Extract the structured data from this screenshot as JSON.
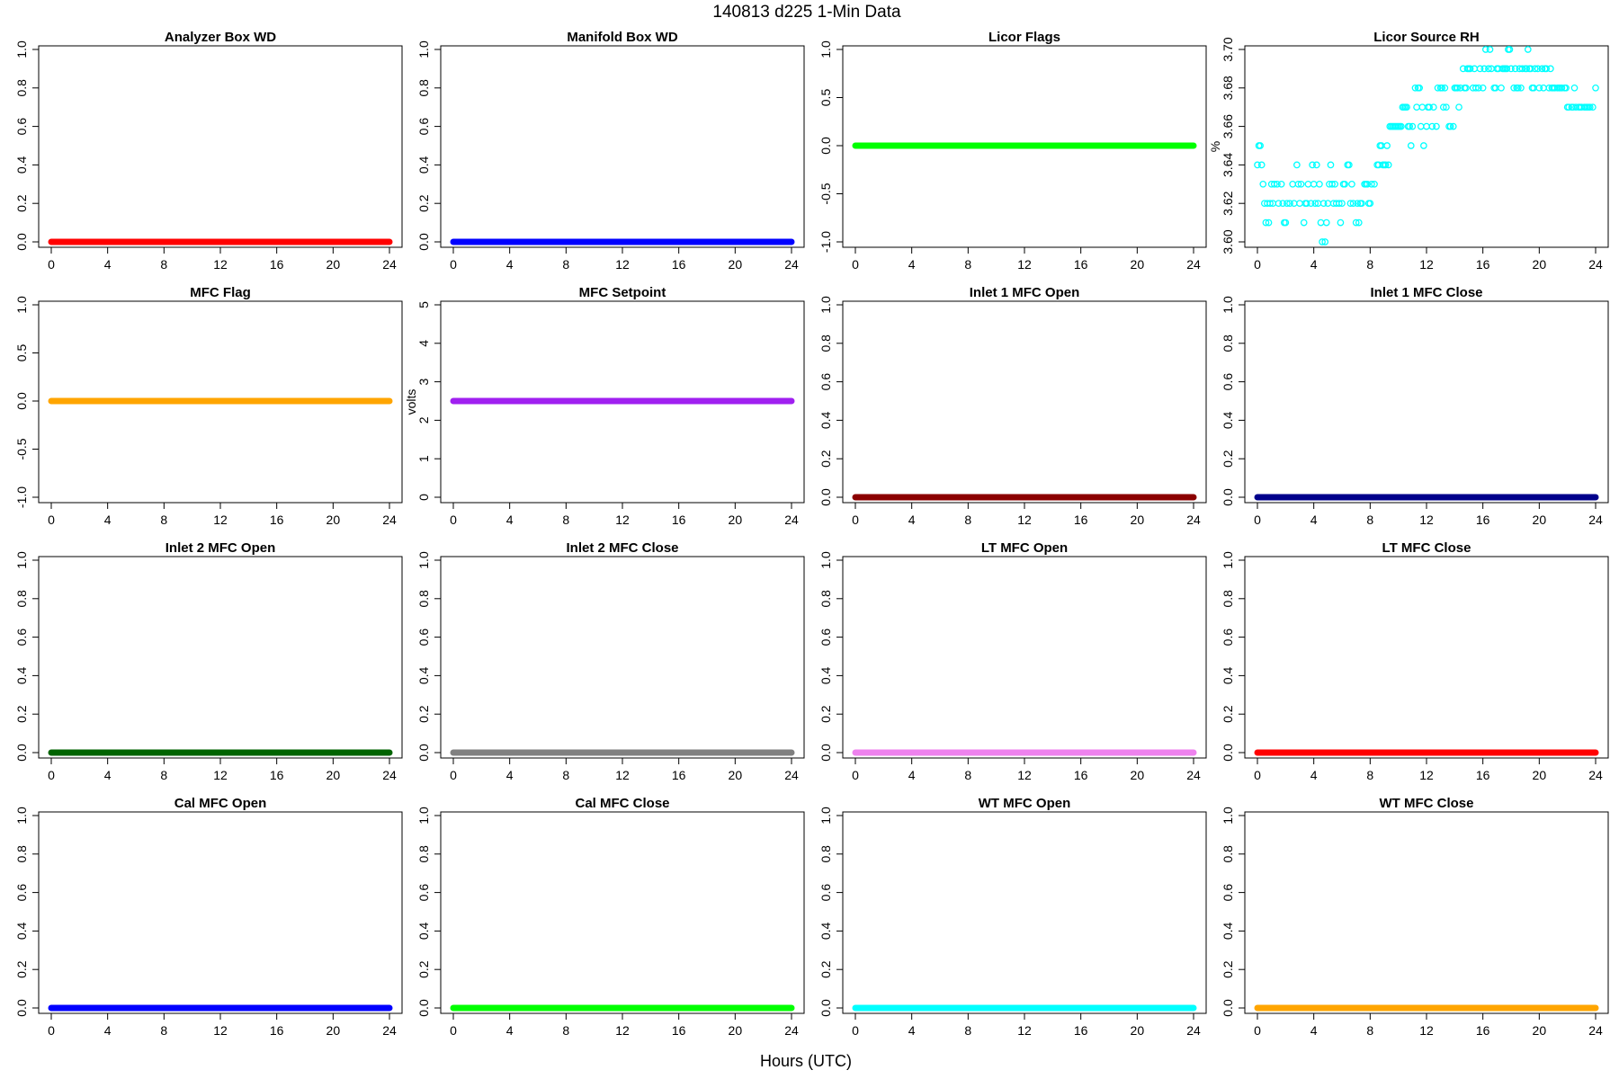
{
  "figure": {
    "title": "140813   d225   1-Min Data",
    "xlabel": "Hours (UTC)"
  },
  "chart_data": [
    {
      "type": "scatter",
      "title": "Analyzer Box WD",
      "ylabel": "",
      "xlim": [
        0,
        24
      ],
      "ylim": [
        0,
        1
      ],
      "x_ticks": [
        0,
        4,
        8,
        12,
        16,
        20,
        24
      ],
      "y_ticks": [
        "0.0",
        "0.2",
        "0.4",
        "0.6",
        "0.8",
        "1.0"
      ],
      "color": "#ff0000",
      "series": [
        {
          "x": [
            0,
            24
          ],
          "y": [
            0,
            0
          ]
        }
      ]
    },
    {
      "type": "scatter",
      "title": "Manifold Box WD",
      "ylabel": "",
      "xlim": [
        0,
        24
      ],
      "ylim": [
        0,
        1
      ],
      "x_ticks": [
        0,
        4,
        8,
        12,
        16,
        20,
        24
      ],
      "y_ticks": [
        "0.0",
        "0.2",
        "0.4",
        "0.6",
        "0.8",
        "1.0"
      ],
      "color": "#0000ff",
      "series": [
        {
          "x": [
            0,
            24
          ],
          "y": [
            0,
            0
          ]
        }
      ]
    },
    {
      "type": "scatter",
      "title": "Licor Flags",
      "ylabel": "",
      "xlim": [
        0,
        24
      ],
      "ylim": [
        -1,
        1
      ],
      "x_ticks": [
        0,
        4,
        8,
        12,
        16,
        20,
        24
      ],
      "y_ticks": [
        "-1.0",
        "-0.5",
        "0.0",
        "0.5",
        "1.0"
      ],
      "color": "#00ff00",
      "series": [
        {
          "x": [
            0,
            24
          ],
          "y": [
            0,
            0
          ]
        }
      ]
    },
    {
      "type": "scatter",
      "title": "Licor Source RH",
      "ylabel": "%",
      "xlim": [
        0,
        24
      ],
      "ylim": [
        3.6,
        3.7
      ],
      "x_ticks": [
        0,
        4,
        8,
        12,
        16,
        20,
        24
      ],
      "y_ticks": [
        "3.60",
        "3.62",
        "3.64",
        "3.66",
        "3.68",
        "3.70"
      ],
      "color": "#00ffff",
      "markers": "open-circle",
      "points": [
        [
          0.0,
          3.64
        ],
        [
          0.1,
          3.65
        ],
        [
          0.2,
          3.65
        ],
        [
          0.3,
          3.64
        ],
        [
          0.4,
          3.63
        ],
        [
          0.5,
          3.62
        ],
        [
          0.6,
          3.61
        ],
        [
          0.7,
          3.62
        ],
        [
          0.8,
          3.61
        ],
        [
          0.9,
          3.62
        ],
        [
          1.0,
          3.63
        ],
        [
          1.1,
          3.62
        ],
        [
          1.2,
          3.63
        ],
        [
          1.4,
          3.63
        ],
        [
          1.5,
          3.62
        ],
        [
          1.7,
          3.63
        ],
        [
          1.8,
          3.62
        ],
        [
          1.9,
          3.61
        ],
        [
          2.0,
          3.61
        ],
        [
          2.1,
          3.62
        ],
        [
          2.3,
          3.62
        ],
        [
          2.5,
          3.63
        ],
        [
          2.6,
          3.62
        ],
        [
          2.8,
          3.64
        ],
        [
          2.9,
          3.63
        ],
        [
          3.0,
          3.62
        ],
        [
          3.1,
          3.63
        ],
        [
          3.3,
          3.61
        ],
        [
          3.4,
          3.62
        ],
        [
          3.5,
          3.62
        ],
        [
          3.6,
          3.63
        ],
        [
          3.8,
          3.62
        ],
        [
          3.9,
          3.64
        ],
        [
          4.0,
          3.63
        ],
        [
          4.1,
          3.62
        ],
        [
          4.2,
          3.64
        ],
        [
          4.3,
          3.62
        ],
        [
          4.4,
          3.63
        ],
        [
          4.5,
          3.61
        ],
        [
          4.6,
          3.6
        ],
        [
          4.7,
          3.62
        ],
        [
          4.8,
          3.6
        ],
        [
          4.9,
          3.61
        ],
        [
          5.0,
          3.62
        ],
        [
          5.1,
          3.63
        ],
        [
          5.2,
          3.64
        ],
        [
          5.3,
          3.63
        ],
        [
          5.4,
          3.62
        ],
        [
          5.5,
          3.63
        ],
        [
          5.6,
          3.62
        ],
        [
          5.8,
          3.62
        ],
        [
          5.9,
          3.61
        ],
        [
          6.0,
          3.62
        ],
        [
          6.1,
          3.63
        ],
        [
          6.2,
          3.63
        ],
        [
          6.4,
          3.64
        ],
        [
          6.5,
          3.64
        ],
        [
          6.6,
          3.62
        ],
        [
          6.7,
          3.63
        ],
        [
          6.8,
          3.62
        ],
        [
          7.0,
          3.61
        ],
        [
          7.1,
          3.62
        ],
        [
          7.2,
          3.61
        ],
        [
          7.3,
          3.62
        ],
        [
          7.4,
          3.62
        ],
        [
          7.6,
          3.63
        ],
        [
          7.7,
          3.63
        ],
        [
          7.8,
          3.63
        ],
        [
          7.9,
          3.62
        ],
        [
          8.0,
          3.62
        ],
        [
          8.1,
          3.63
        ],
        [
          8.3,
          3.63
        ],
        [
          8.5,
          3.64
        ],
        [
          8.6,
          3.64
        ],
        [
          8.7,
          3.65
        ],
        [
          8.8,
          3.65
        ],
        [
          8.9,
          3.64
        ],
        [
          9.0,
          3.64
        ],
        [
          9.1,
          3.64
        ],
        [
          9.2,
          3.65
        ],
        [
          9.3,
          3.64
        ],
        [
          9.4,
          3.66
        ],
        [
          9.5,
          3.66
        ],
        [
          9.6,
          3.66
        ],
        [
          9.7,
          3.66
        ],
        [
          9.8,
          3.66
        ],
        [
          9.9,
          3.66
        ],
        [
          10.0,
          3.66
        ],
        [
          10.1,
          3.66
        ],
        [
          10.2,
          3.66
        ],
        [
          10.3,
          3.67
        ],
        [
          10.4,
          3.67
        ],
        [
          10.5,
          3.67
        ],
        [
          10.6,
          3.67
        ],
        [
          10.7,
          3.66
        ],
        [
          10.8,
          3.66
        ],
        [
          10.9,
          3.65
        ],
        [
          11.0,
          3.66
        ],
        [
          11.2,
          3.68
        ],
        [
          11.3,
          3.67
        ],
        [
          11.4,
          3.68
        ],
        [
          11.5,
          3.68
        ],
        [
          11.6,
          3.66
        ],
        [
          11.7,
          3.67
        ],
        [
          11.8,
          3.65
        ],
        [
          12.0,
          3.66
        ],
        [
          12.1,
          3.67
        ],
        [
          12.2,
          3.67
        ],
        [
          12.4,
          3.66
        ],
        [
          12.5,
          3.67
        ],
        [
          12.7,
          3.66
        ],
        [
          12.8,
          3.68
        ],
        [
          13.0,
          3.68
        ],
        [
          13.1,
          3.68
        ],
        [
          13.2,
          3.67
        ],
        [
          13.3,
          3.68
        ],
        [
          13.4,
          3.67
        ],
        [
          13.6,
          3.66
        ],
        [
          13.7,
          3.66
        ],
        [
          13.9,
          3.66
        ],
        [
          14.0,
          3.68
        ],
        [
          14.1,
          3.68
        ],
        [
          14.2,
          3.68
        ],
        [
          14.3,
          3.67
        ],
        [
          14.4,
          3.68
        ],
        [
          14.6,
          3.69
        ],
        [
          14.7,
          3.68
        ],
        [
          14.8,
          3.68
        ],
        [
          14.9,
          3.69
        ],
        [
          15.0,
          3.69
        ],
        [
          15.1,
          3.69
        ],
        [
          15.3,
          3.68
        ],
        [
          15.4,
          3.69
        ],
        [
          15.5,
          3.68
        ],
        [
          15.7,
          3.68
        ],
        [
          15.8,
          3.69
        ],
        [
          16.0,
          3.68
        ],
        [
          16.1,
          3.69
        ],
        [
          16.2,
          3.7
        ],
        [
          16.4,
          3.69
        ],
        [
          16.5,
          3.7
        ],
        [
          16.6,
          3.69
        ],
        [
          16.8,
          3.68
        ],
        [
          16.9,
          3.68
        ],
        [
          17.0,
          3.69
        ],
        [
          17.1,
          3.69
        ],
        [
          17.3,
          3.68
        ],
        [
          17.4,
          3.69
        ],
        [
          17.5,
          3.69
        ],
        [
          17.6,
          3.69
        ],
        [
          17.7,
          3.69
        ],
        [
          17.8,
          3.7
        ],
        [
          17.9,
          3.7
        ],
        [
          18.0,
          3.69
        ],
        [
          18.2,
          3.68
        ],
        [
          18.3,
          3.69
        ],
        [
          18.4,
          3.68
        ],
        [
          18.5,
          3.68
        ],
        [
          18.6,
          3.69
        ],
        [
          18.7,
          3.68
        ],
        [
          18.8,
          3.69
        ],
        [
          19.0,
          3.69
        ],
        [
          19.1,
          3.69
        ],
        [
          19.2,
          3.7
        ],
        [
          19.3,
          3.69
        ],
        [
          19.4,
          3.69
        ],
        [
          19.5,
          3.68
        ],
        [
          19.6,
          3.68
        ],
        [
          19.7,
          3.69
        ],
        [
          19.9,
          3.69
        ],
        [
          20.0,
          3.68
        ],
        [
          20.2,
          3.69
        ],
        [
          20.3,
          3.68
        ],
        [
          20.4,
          3.69
        ],
        [
          20.5,
          3.69
        ],
        [
          20.7,
          3.68
        ],
        [
          20.8,
          3.69
        ],
        [
          20.9,
          3.68
        ],
        [
          21.0,
          3.68
        ],
        [
          21.1,
          3.68
        ],
        [
          21.3,
          3.68
        ],
        [
          21.4,
          3.68
        ],
        [
          21.5,
          3.68
        ],
        [
          21.6,
          3.68
        ],
        [
          21.8,
          3.68
        ],
        [
          21.9,
          3.68
        ],
        [
          22.0,
          3.67
        ],
        [
          22.1,
          3.67
        ],
        [
          22.3,
          3.67
        ],
        [
          22.4,
          3.67
        ],
        [
          22.5,
          3.68
        ],
        [
          22.6,
          3.67
        ],
        [
          22.8,
          3.67
        ],
        [
          22.9,
          3.67
        ],
        [
          23.0,
          3.67
        ],
        [
          23.2,
          3.67
        ],
        [
          23.3,
          3.67
        ],
        [
          23.4,
          3.67
        ],
        [
          23.5,
          3.67
        ],
        [
          23.6,
          3.67
        ],
        [
          23.8,
          3.67
        ],
        [
          24.0,
          3.68
        ]
      ]
    },
    {
      "type": "scatter",
      "title": "MFC Flag",
      "ylabel": "",
      "xlim": [
        0,
        24
      ],
      "ylim": [
        -1,
        1
      ],
      "x_ticks": [
        0,
        4,
        8,
        12,
        16,
        20,
        24
      ],
      "y_ticks": [
        "-1.0",
        "-0.5",
        "0.0",
        "0.5",
        "1.0"
      ],
      "color": "#ffa500",
      "series": [
        {
          "x": [
            0,
            24
          ],
          "y": [
            0,
            0
          ]
        }
      ]
    },
    {
      "type": "scatter",
      "title": "MFC Setpoint",
      "ylabel": "volts",
      "xlim": [
        0,
        24
      ],
      "ylim": [
        0,
        5
      ],
      "x_ticks": [
        0,
        4,
        8,
        12,
        16,
        20,
        24
      ],
      "y_ticks": [
        "0",
        "1",
        "2",
        "3",
        "4",
        "5"
      ],
      "color": "#a020f0",
      "series": [
        {
          "x": [
            0,
            24
          ],
          "y": [
            2.5,
            2.5
          ]
        }
      ]
    },
    {
      "type": "scatter",
      "title": "Inlet 1 MFC Open",
      "ylabel": "",
      "xlim": [
        0,
        24
      ],
      "ylim": [
        0,
        1
      ],
      "x_ticks": [
        0,
        4,
        8,
        12,
        16,
        20,
        24
      ],
      "y_ticks": [
        "0.0",
        "0.2",
        "0.4",
        "0.6",
        "0.8",
        "1.0"
      ],
      "color": "#8b0000",
      "series": [
        {
          "x": [
            0,
            24
          ],
          "y": [
            0,
            0
          ]
        }
      ]
    },
    {
      "type": "scatter",
      "title": "Inlet 1 MFC Close",
      "ylabel": "",
      "xlim": [
        0,
        24
      ],
      "ylim": [
        0,
        1
      ],
      "x_ticks": [
        0,
        4,
        8,
        12,
        16,
        20,
        24
      ],
      "y_ticks": [
        "0.0",
        "0.2",
        "0.4",
        "0.6",
        "0.8",
        "1.0"
      ],
      "color": "#00008b",
      "series": [
        {
          "x": [
            0,
            24
          ],
          "y": [
            0,
            0
          ]
        }
      ]
    },
    {
      "type": "scatter",
      "title": "Inlet 2 MFC Open",
      "ylabel": "",
      "xlim": [
        0,
        24
      ],
      "ylim": [
        0,
        1
      ],
      "x_ticks": [
        0,
        4,
        8,
        12,
        16,
        20,
        24
      ],
      "y_ticks": [
        "0.0",
        "0.2",
        "0.4",
        "0.6",
        "0.8",
        "1.0"
      ],
      "color": "#006400",
      "series": [
        {
          "x": [
            0,
            24
          ],
          "y": [
            0,
            0
          ]
        }
      ]
    },
    {
      "type": "scatter",
      "title": "Inlet 2 MFC Close",
      "ylabel": "",
      "xlim": [
        0,
        24
      ],
      "ylim": [
        0,
        1
      ],
      "x_ticks": [
        0,
        4,
        8,
        12,
        16,
        20,
        24
      ],
      "y_ticks": [
        "0.0",
        "0.2",
        "0.4",
        "0.6",
        "0.8",
        "1.0"
      ],
      "color": "#808080",
      "series": [
        {
          "x": [
            0,
            24
          ],
          "y": [
            0,
            0
          ]
        }
      ]
    },
    {
      "type": "scatter",
      "title": "LT MFC Open",
      "ylabel": "",
      "xlim": [
        0,
        24
      ],
      "ylim": [
        0,
        1
      ],
      "x_ticks": [
        0,
        4,
        8,
        12,
        16,
        20,
        24
      ],
      "y_ticks": [
        "0.0",
        "0.2",
        "0.4",
        "0.6",
        "0.8",
        "1.0"
      ],
      "color": "#ee82ee",
      "series": [
        {
          "x": [
            0,
            24
          ],
          "y": [
            0,
            0
          ]
        }
      ]
    },
    {
      "type": "scatter",
      "title": "LT MFC Close",
      "ylabel": "",
      "xlim": [
        0,
        24
      ],
      "ylim": [
        0,
        1
      ],
      "x_ticks": [
        0,
        4,
        8,
        12,
        16,
        20,
        24
      ],
      "y_ticks": [
        "0.0",
        "0.2",
        "0.4",
        "0.6",
        "0.8",
        "1.0"
      ],
      "color": "#ff0000",
      "series": [
        {
          "x": [
            0,
            24
          ],
          "y": [
            0,
            0
          ]
        }
      ]
    },
    {
      "type": "scatter",
      "title": "Cal MFC Open",
      "ylabel": "",
      "xlim": [
        0,
        24
      ],
      "ylim": [
        0,
        1
      ],
      "x_ticks": [
        0,
        4,
        8,
        12,
        16,
        20,
        24
      ],
      "y_ticks": [
        "0.0",
        "0.2",
        "0.4",
        "0.6",
        "0.8",
        "1.0"
      ],
      "color": "#0000ff",
      "series": [
        {
          "x": [
            0,
            24
          ],
          "y": [
            0,
            0
          ]
        }
      ]
    },
    {
      "type": "scatter",
      "title": "Cal MFC Close",
      "ylabel": "",
      "xlim": [
        0,
        24
      ],
      "ylim": [
        0,
        1
      ],
      "x_ticks": [
        0,
        4,
        8,
        12,
        16,
        20,
        24
      ],
      "y_ticks": [
        "0.0",
        "0.2",
        "0.4",
        "0.6",
        "0.8",
        "1.0"
      ],
      "color": "#00ff00",
      "series": [
        {
          "x": [
            0,
            24
          ],
          "y": [
            0,
            0
          ]
        }
      ]
    },
    {
      "type": "scatter",
      "title": "WT MFC Open",
      "ylabel": "",
      "xlim": [
        0,
        24
      ],
      "ylim": [
        0,
        1
      ],
      "x_ticks": [
        0,
        4,
        8,
        12,
        16,
        20,
        24
      ],
      "y_ticks": [
        "0.0",
        "0.2",
        "0.4",
        "0.6",
        "0.8",
        "1.0"
      ],
      "color": "#00ffff",
      "series": [
        {
          "x": [
            0,
            24
          ],
          "y": [
            0,
            0
          ]
        }
      ]
    },
    {
      "type": "scatter",
      "title": "WT MFC Close",
      "ylabel": "",
      "xlim": [
        0,
        24
      ],
      "ylim": [
        0,
        1
      ],
      "x_ticks": [
        0,
        4,
        8,
        12,
        16,
        20,
        24
      ],
      "y_ticks": [
        "0.0",
        "0.2",
        "0.4",
        "0.6",
        "0.8",
        "1.0"
      ],
      "color": "#ffa500",
      "series": [
        {
          "x": [
            0,
            24
          ],
          "y": [
            0,
            0
          ]
        }
      ]
    }
  ]
}
